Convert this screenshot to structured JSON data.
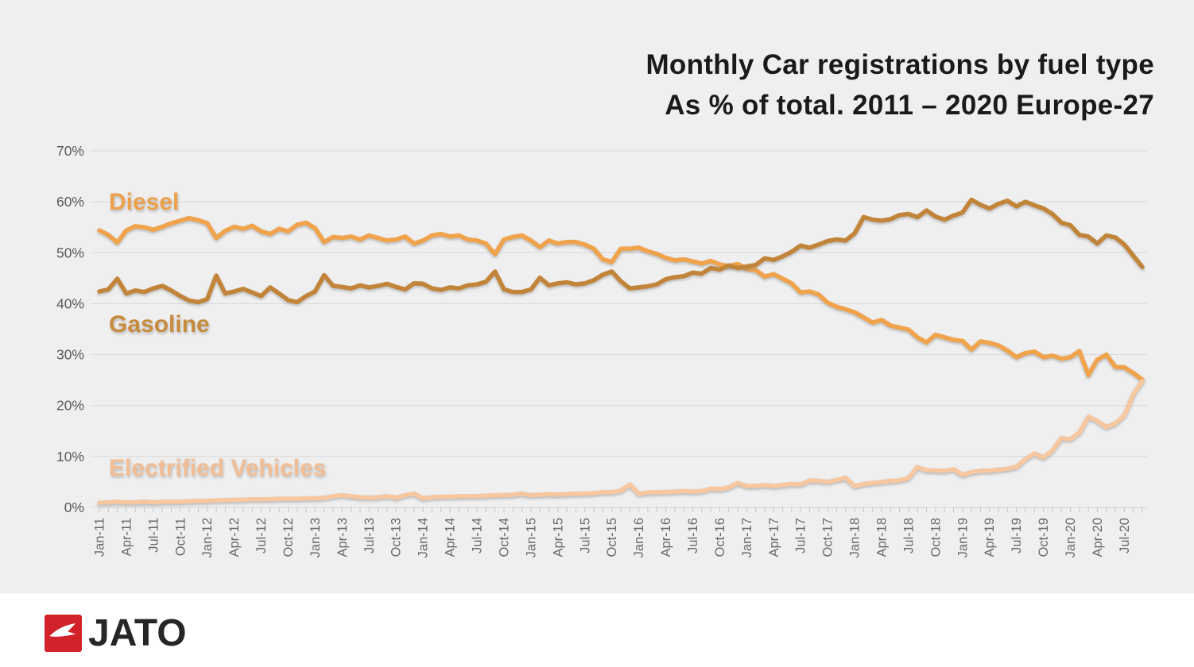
{
  "chart_data": {
    "type": "line",
    "title": "Monthly Car registrations by fuel type",
    "subtitle": "As % of total. 2011 – 2020 Europe-27",
    "ylabel": "",
    "xlabel": "",
    "ylim": [
      0,
      70
    ],
    "grid": true,
    "legend_position": "inline-labels",
    "y_ticks": [
      "0%",
      "10%",
      "20%",
      "30%",
      "40%",
      "50%",
      "60%",
      "70%"
    ],
    "x_tick_labels": [
      "Jan-11",
      "Apr-11",
      "Jul-11",
      "Oct-11",
      "Jan-12",
      "Apr-12",
      "Jul-12",
      "Oct-12",
      "Jan-13",
      "Apr-13",
      "Jul-13",
      "Oct-13",
      "Jan-14",
      "Apr-14",
      "Jul-14",
      "Oct-14",
      "Jan-15",
      "Apr-15",
      "Jul-15",
      "Oct-15",
      "Jan-16",
      "Apr-16",
      "Jul-16",
      "Oct-16",
      "Jan-17",
      "Apr-17",
      "Jul-17",
      "Oct-17",
      "Jan-18",
      "Apr-18",
      "Jul-18",
      "Oct-18",
      "Jan-19",
      "Apr-19",
      "Jul-19",
      "Oct-19",
      "Jan-20",
      "Apr-20",
      "Jul-20"
    ],
    "months": [
      "Jan-11",
      "Feb-11",
      "Mar-11",
      "Apr-11",
      "May-11",
      "Jun-11",
      "Jul-11",
      "Aug-11",
      "Sep-11",
      "Oct-11",
      "Nov-11",
      "Dec-11",
      "Jan-12",
      "Feb-12",
      "Mar-12",
      "Apr-12",
      "May-12",
      "Jun-12",
      "Jul-12",
      "Aug-12",
      "Sep-12",
      "Oct-12",
      "Nov-12",
      "Dec-12",
      "Jan-13",
      "Feb-13",
      "Mar-13",
      "Apr-13",
      "May-13",
      "Jun-13",
      "Jul-13",
      "Aug-13",
      "Sep-13",
      "Oct-13",
      "Nov-13",
      "Dec-13",
      "Jan-14",
      "Feb-14",
      "Mar-14",
      "Apr-14",
      "May-14",
      "Jun-14",
      "Jul-14",
      "Aug-14",
      "Sep-14",
      "Oct-14",
      "Nov-14",
      "Dec-14",
      "Jan-15",
      "Feb-15",
      "Mar-15",
      "Apr-15",
      "May-15",
      "Jun-15",
      "Jul-15",
      "Aug-15",
      "Sep-15",
      "Oct-15",
      "Nov-15",
      "Dec-15",
      "Jan-16",
      "Feb-16",
      "Mar-16",
      "Apr-16",
      "May-16",
      "Jun-16",
      "Jul-16",
      "Aug-16",
      "Sep-16",
      "Oct-16",
      "Nov-16",
      "Dec-16",
      "Jan-17",
      "Feb-17",
      "Mar-17",
      "Apr-17",
      "May-17",
      "Jun-17",
      "Jul-17",
      "Aug-17",
      "Sep-17",
      "Oct-17",
      "Nov-17",
      "Dec-17",
      "Jan-18",
      "Feb-18",
      "Mar-18",
      "Apr-18",
      "May-18",
      "Jun-18",
      "Jul-18",
      "Aug-18",
      "Sep-18",
      "Oct-18",
      "Nov-18",
      "Dec-18",
      "Jan-19",
      "Feb-19",
      "Mar-19",
      "Apr-19",
      "May-19",
      "Jun-19",
      "Jul-19",
      "Aug-19",
      "Sep-19",
      "Oct-19",
      "Nov-19",
      "Dec-19",
      "Jan-20",
      "Feb-20",
      "Mar-20",
      "Apr-20",
      "May-20",
      "Jun-20",
      "Jul-20",
      "Aug-20",
      "Sep-20"
    ],
    "series": [
      {
        "name": "Diesel",
        "color": "#F1A34B",
        "label_color": "#EDA14D",
        "values": [
          54.4,
          53.5,
          52.0,
          54.4,
          55.2,
          55.0,
          54.5,
          55.1,
          55.8,
          56.3,
          56.8,
          56.4,
          55.8,
          52.9,
          54.3,
          55.1,
          54.7,
          55.3,
          54.2,
          53.7,
          54.7,
          54.2,
          55.5,
          55.9,
          54.8,
          52.1,
          53.1,
          52.9,
          53.2,
          52.6,
          53.4,
          52.9,
          52.4,
          52.6,
          53.2,
          51.8,
          52.4,
          53.4,
          53.7,
          53.2,
          53.4,
          52.6,
          52.4,
          51.8,
          49.7,
          52.6,
          53.1,
          53.4,
          52.4,
          51.1,
          52.4,
          51.8,
          52.1,
          52.1,
          51.6,
          50.8,
          48.7,
          48.2,
          50.8,
          50.8,
          51.0,
          50.3,
          49.8,
          49.0,
          48.5,
          48.7,
          48.3,
          47.9,
          48.4,
          47.7,
          47.4,
          47.8,
          46.8,
          46.6,
          45.3,
          45.8,
          44.9,
          44.0,
          42.2,
          42.4,
          41.8,
          40.2,
          39.4,
          38.9,
          38.3,
          37.3,
          36.3,
          36.8,
          35.7,
          35.3,
          34.9,
          33.4,
          32.4,
          33.9,
          33.4,
          32.9,
          32.7,
          31.0,
          32.6,
          32.3,
          31.8,
          30.8,
          29.5,
          30.3,
          30.6,
          29.5,
          29.8,
          29.2,
          29.5,
          30.7,
          26.0,
          29.0,
          30.0,
          27.6,
          27.5,
          26.4,
          25.1
        ]
      },
      {
        "name": "Gasoline",
        "color": "#C28439",
        "label_color": "#C68B3E",
        "values": [
          42.4,
          42.8,
          44.9,
          42.0,
          42.6,
          42.3,
          43.0,
          43.5,
          42.6,
          41.5,
          40.6,
          40.3,
          40.9,
          45.5,
          42.0,
          42.4,
          42.9,
          42.2,
          41.5,
          43.2,
          42.0,
          40.7,
          40.3,
          41.5,
          42.4,
          45.6,
          43.5,
          43.3,
          43.0,
          43.6,
          43.2,
          43.5,
          43.9,
          43.3,
          42.8,
          44.0,
          43.9,
          43.0,
          42.7,
          43.2,
          43.0,
          43.6,
          43.8,
          44.3,
          46.3,
          42.8,
          42.3,
          42.3,
          42.8,
          45.1,
          43.6,
          44.0,
          44.2,
          43.8,
          44.0,
          44.6,
          45.7,
          46.3,
          44.4,
          43.0,
          43.2,
          43.4,
          43.8,
          44.8,
          45.2,
          45.4,
          46.1,
          45.9,
          47.0,
          46.7,
          47.5,
          47.0,
          47.3,
          47.6,
          48.9,
          48.6,
          49.3,
          50.2,
          51.4,
          51.0,
          51.6,
          52.3,
          52.6,
          52.4,
          53.8,
          57.0,
          56.5,
          56.3,
          56.6,
          57.4,
          57.6,
          57.0,
          58.3,
          57.1,
          56.5,
          57.3,
          57.9,
          60.4,
          59.4,
          58.7,
          59.6,
          60.2,
          59.1,
          60.0,
          59.3,
          58.7,
          57.6,
          55.9,
          55.4,
          53.5,
          53.2,
          51.8,
          53.4,
          53.0,
          51.6,
          49.4,
          47.2
        ]
      },
      {
        "name": "Electrified Vehicles",
        "color": "#F7C7A0",
        "label_color": "#F1BD95",
        "values": [
          0.9,
          1.0,
          1.1,
          1.0,
          1.0,
          1.1,
          1.0,
          1.1,
          1.1,
          1.1,
          1.2,
          1.3,
          1.3,
          1.4,
          1.4,
          1.5,
          1.5,
          1.6,
          1.6,
          1.6,
          1.7,
          1.7,
          1.7,
          1.8,
          1.8,
          1.9,
          2.2,
          2.4,
          2.2,
          2.0,
          1.9,
          2.0,
          2.2,
          1.9,
          2.4,
          2.7,
          1.8,
          2.0,
          2.1,
          2.1,
          2.2,
          2.2,
          2.2,
          2.3,
          2.4,
          2.4,
          2.5,
          2.7,
          2.4,
          2.5,
          2.6,
          2.5,
          2.6,
          2.7,
          2.7,
          2.8,
          3.0,
          3.0,
          3.3,
          4.5,
          2.7,
          2.9,
          3.0,
          3.0,
          3.1,
          3.2,
          3.1,
          3.2,
          3.7,
          3.6,
          3.9,
          4.8,
          4.2,
          4.2,
          4.4,
          4.2,
          4.4,
          4.6,
          4.5,
          5.3,
          5.2,
          5.0,
          5.4,
          5.8,
          4.2,
          4.6,
          4.8,
          5.0,
          5.2,
          5.3,
          5.8,
          7.9,
          7.3,
          7.2,
          7.2,
          7.5,
          6.4,
          6.9,
          7.2,
          7.2,
          7.4,
          7.6,
          8.0,
          9.5,
          10.6,
          9.8,
          11.2,
          13.6,
          13.4,
          14.7,
          17.8,
          17.0,
          15.8,
          16.5,
          18.1,
          22.2,
          24.8
        ]
      }
    ]
  },
  "colors": {
    "chart_background": "#efefef",
    "page_background": "#ffffff",
    "grid_line": "#dcdcdc",
    "axis_tick": "#c6c6c6",
    "axis_text": "#595959",
    "title_text": "#1a1a1a",
    "logo_red": "#D2232A",
    "logo_text": "#262626"
  },
  "branding": {
    "logo_text": "JATO"
  }
}
